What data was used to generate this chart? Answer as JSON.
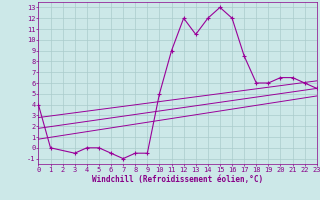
{
  "xlabel": "Windchill (Refroidissement éolien,°C)",
  "background_color": "#cce8e8",
  "grid_color": "#aacccc",
  "line_color": "#990099",
  "line1_x": [
    0,
    1,
    3,
    4,
    5,
    6,
    7,
    8,
    9,
    10,
    11,
    12,
    13,
    14,
    15,
    16,
    17,
    18,
    19,
    20,
    21,
    22,
    23
  ],
  "line1_y": [
    4,
    0,
    -0.5,
    0,
    0,
    -0.5,
    -1,
    -0.5,
    -0.5,
    5,
    9,
    12,
    10.5,
    12,
    13,
    12,
    8.5,
    6,
    6,
    6.5,
    6.5,
    6,
    5.5
  ],
  "line2_x": [
    0,
    23
  ],
  "line2_y": [
    2.8,
    6.2
  ],
  "line3_x": [
    0,
    23
  ],
  "line3_y": [
    1.8,
    5.5
  ],
  "line4_x": [
    0,
    23
  ],
  "line4_y": [
    0.8,
    4.8
  ],
  "xlim": [
    0,
    23
  ],
  "ylim": [
    -1.5,
    13.5
  ],
  "xticks": [
    0,
    1,
    2,
    3,
    4,
    5,
    6,
    7,
    8,
    9,
    10,
    11,
    12,
    13,
    14,
    15,
    16,
    17,
    18,
    19,
    20,
    21,
    22,
    23
  ],
  "yticks": [
    -1,
    0,
    1,
    2,
    3,
    4,
    5,
    6,
    7,
    8,
    9,
    10,
    11,
    12,
    13
  ],
  "tick_color": "#880088",
  "xlabel_fontsize": 5.5,
  "tick_fontsize": 5.0
}
